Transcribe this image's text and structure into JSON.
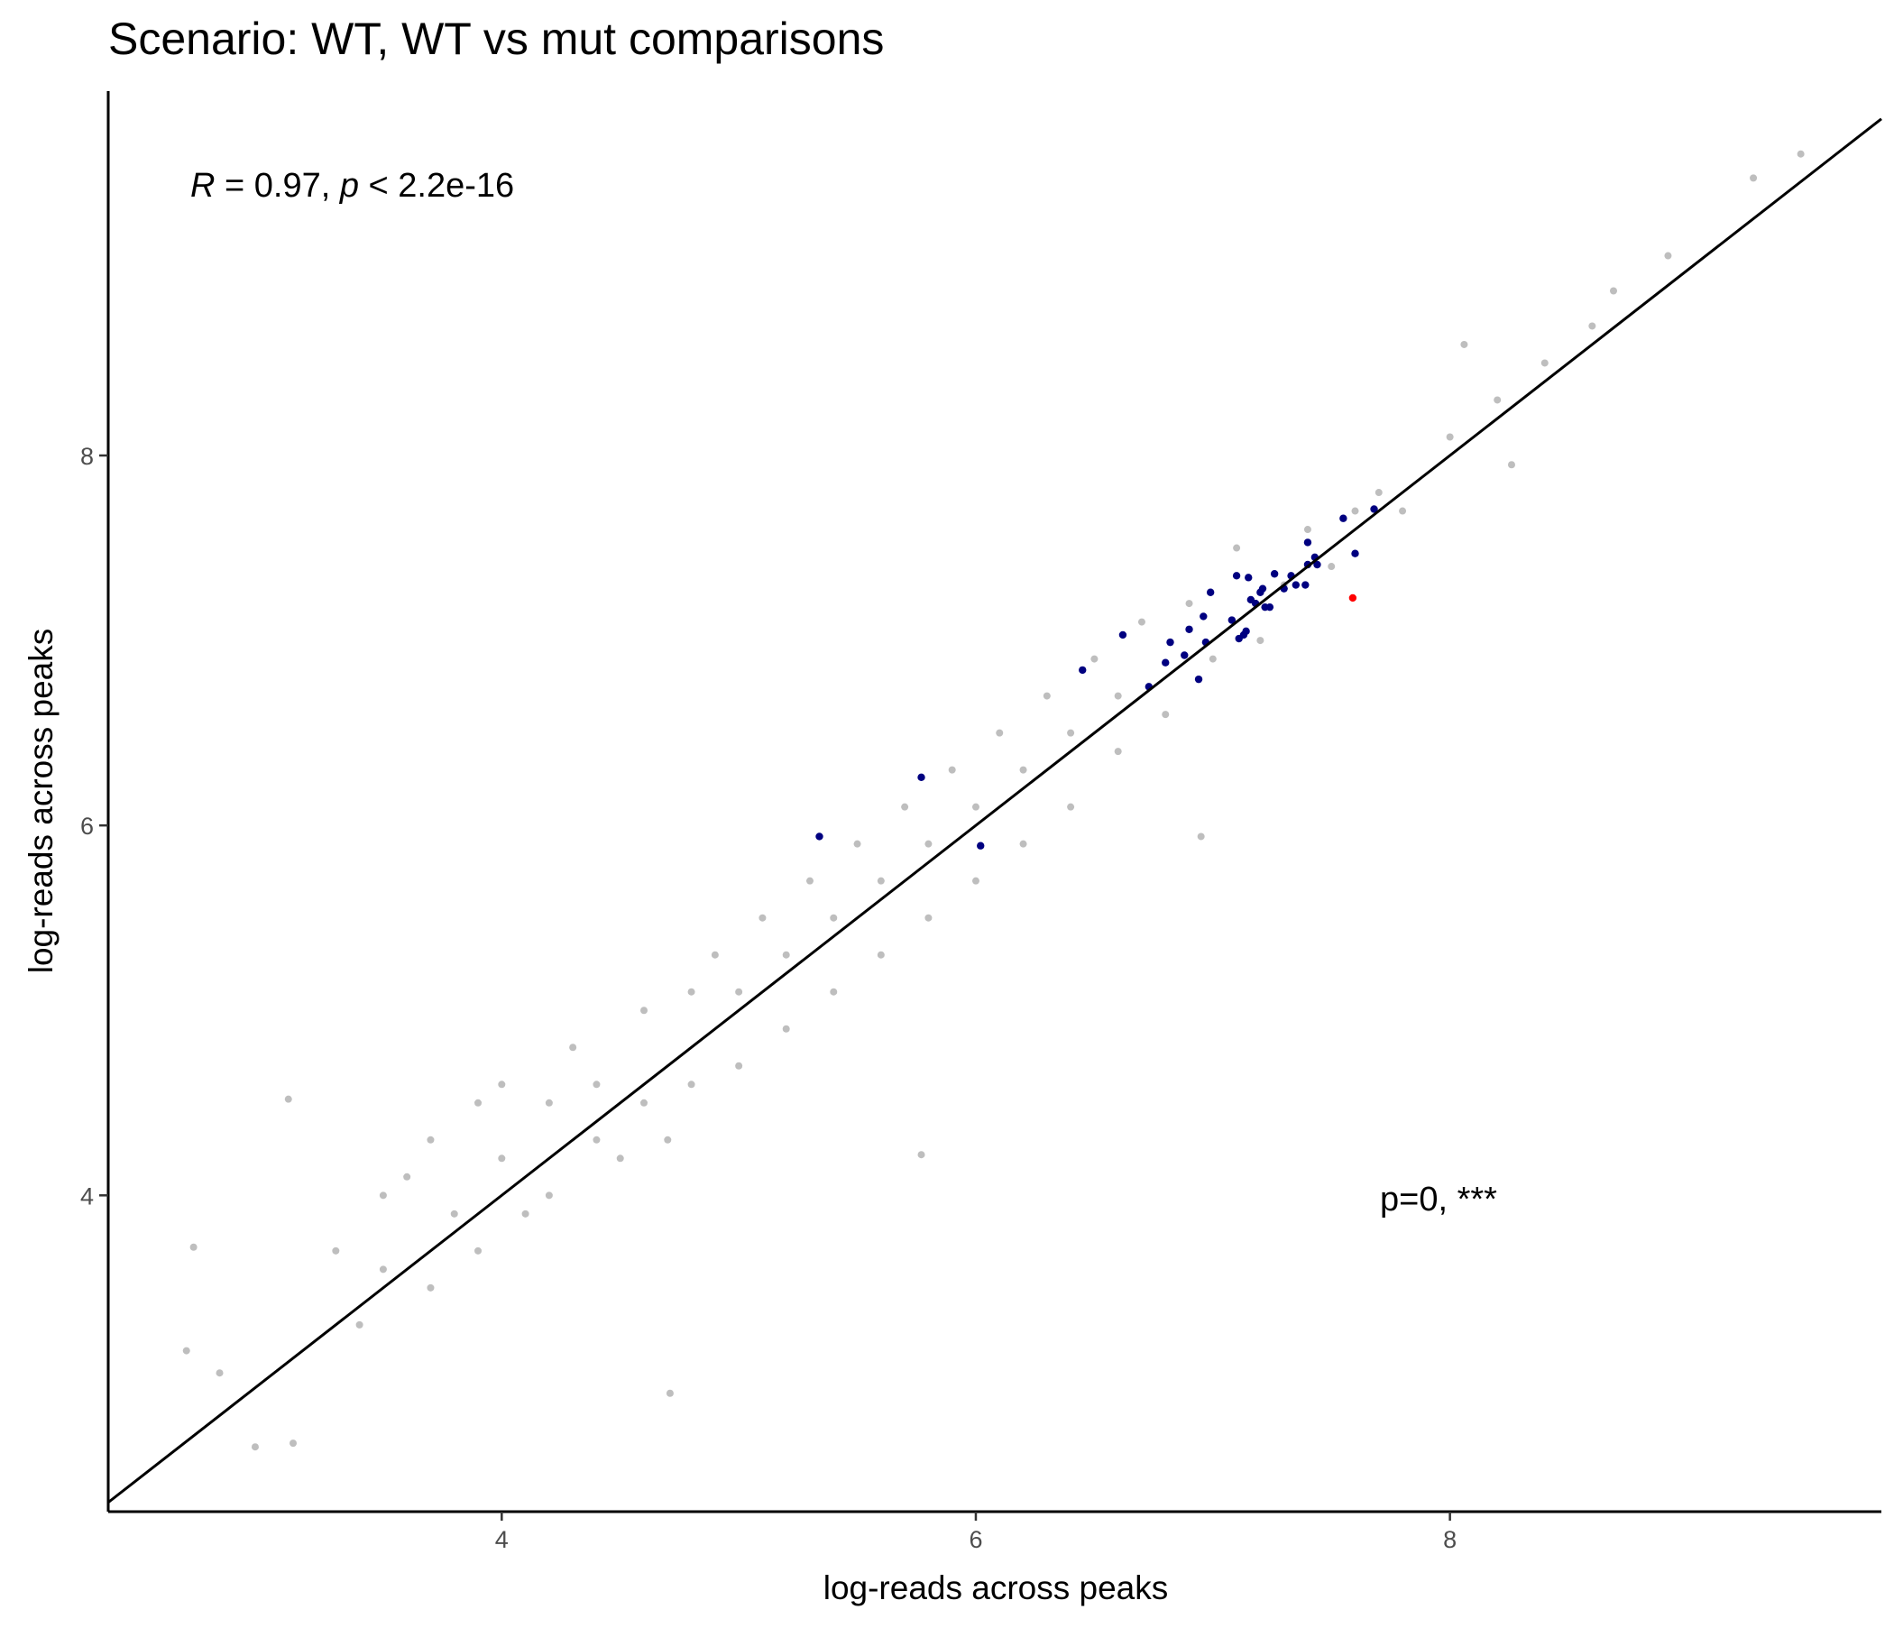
{
  "chart_data": {
    "type": "scatter",
    "title": "Scenario: WT, WT vs mut comparisons",
    "x_label": "log-reads across peaks",
    "y_label": "log-reads across peaks",
    "corr_annotation": [
      "R",
      " = 0.97, ",
      "p",
      " < 2.2e-16"
    ],
    "test_annotation": "p=0, ***",
    "xlim": [
      2.34,
      9.82
    ],
    "ylim": [
      2.29,
      9.97
    ],
    "xticks": [
      4,
      6,
      8
    ],
    "yticks": [
      4,
      6,
      8
    ],
    "grid": false,
    "identity_line": true,
    "series": [
      {
        "color": "#bebebe",
        "x": [
          3.3,
          3.4,
          3.5,
          3.5,
          3.6,
          3.7,
          3.7,
          3.8,
          3.9,
          3.9,
          4.0,
          4.0,
          4.1,
          4.2,
          4.2,
          4.3,
          4.4,
          4.4,
          4.5,
          4.6,
          4.6,
          4.7,
          4.8,
          4.8,
          4.9,
          5.0,
          5.0,
          5.1,
          5.2,
          5.2,
          5.3,
          5.4,
          5.4,
          5.5,
          5.6,
          5.6,
          5.7,
          5.8,
          5.8,
          5.9,
          6.0,
          6.0,
          6.1,
          6.2,
          6.2,
          6.3,
          6.4,
          6.4,
          6.5,
          6.6,
          6.6,
          6.7,
          6.8,
          6.9,
          7.0,
          7.1,
          7.2,
          7.3,
          7.4,
          7.5,
          7.6,
          7.7,
          7.8,
          8.0,
          8.2,
          8.4,
          8.6,
          2.67,
          2.7,
          3.12,
          2.96,
          4.71,
          5.77,
          6.95,
          9.48,
          9.28,
          8.92,
          8.69,
          8.06,
          8.26,
          3.1,
          2.81
        ],
        "values": [
          3.7,
          3.3,
          4.0,
          3.6,
          4.1,
          3.5,
          4.3,
          3.9,
          4.5,
          3.7,
          4.2,
          4.6,
          3.9,
          4.5,
          4.0,
          4.8,
          4.3,
          4.6,
          4.2,
          5.0,
          4.5,
          4.3,
          5.1,
          4.6,
          5.3,
          4.7,
          5.1,
          5.5,
          4.9,
          5.3,
          5.7,
          5.1,
          5.5,
          5.9,
          5.3,
          5.7,
          6.1,
          5.5,
          5.9,
          6.3,
          5.7,
          6.1,
          6.5,
          5.9,
          6.3,
          6.7,
          6.1,
          6.5,
          6.9,
          6.4,
          6.7,
          7.1,
          6.6,
          7.2,
          6.9,
          7.5,
          7.0,
          7.3,
          7.6,
          7.4,
          7.7,
          7.8,
          7.7,
          8.1,
          8.3,
          8.5,
          8.7,
          3.16,
          3.72,
          2.66,
          2.64,
          2.93,
          4.22,
          5.94,
          9.63,
          9.5,
          9.08,
          8.89,
          8.6,
          7.95,
          4.52,
          3.04
        ]
      },
      {
        "color": "#000080",
        "x": [
          5.34,
          5.77,
          6.02,
          6.45,
          6.62,
          6.73,
          6.8,
          6.82,
          6.88,
          6.9,
          6.94,
          6.96,
          6.97,
          6.99,
          7.08,
          7.1,
          7.11,
          7.13,
          7.14,
          7.15,
          7.16,
          7.18,
          7.2,
          7.21,
          7.22,
          7.24,
          7.26,
          7.3,
          7.33,
          7.35,
          7.39,
          7.4,
          7.4,
          7.43,
          7.44,
          7.55,
          7.6,
          7.68
        ],
        "values": [
          5.94,
          6.26,
          5.89,
          6.84,
          7.03,
          6.75,
          6.88,
          6.99,
          6.92,
          7.06,
          6.79,
          7.13,
          6.99,
          7.26,
          7.11,
          7.35,
          7.01,
          7.03,
          7.05,
          7.34,
          7.22,
          7.2,
          7.26,
          7.28,
          7.18,
          7.18,
          7.36,
          7.28,
          7.35,
          7.3,
          7.3,
          7.53,
          7.41,
          7.45,
          7.41,
          7.66,
          7.47,
          7.71
        ]
      },
      {
        "color": "#ff0000",
        "x": [
          7.59
        ],
        "values": [
          7.23
        ]
      }
    ]
  }
}
